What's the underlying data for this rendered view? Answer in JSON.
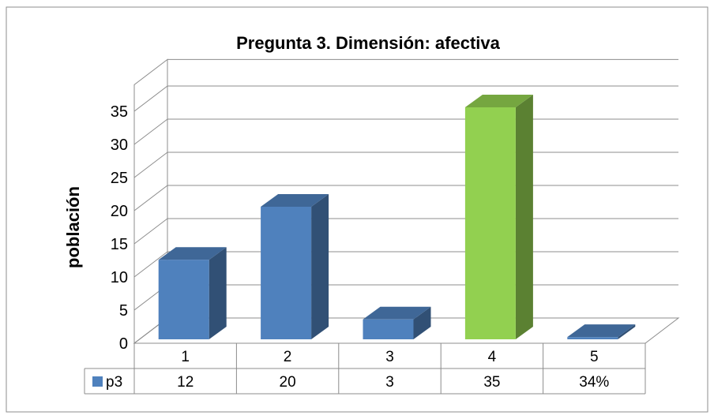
{
  "chart_data": {
    "type": "bar",
    "title": "Pregunta 3. Dimensión: afectiva",
    "xlabel": "",
    "ylabel": "población",
    "categories": [
      "1",
      "2",
      "3",
      "4",
      "5"
    ],
    "series": [
      {
        "name": "p3",
        "values": [
          12,
          20,
          3,
          35,
          0.34
        ],
        "labels": [
          "12",
          "20",
          "3",
          "35",
          "34%"
        ],
        "color": "#4f81bd",
        "highlight": {
          "index": 3,
          "color": "#92d050"
        }
      }
    ],
    "ylim": [
      0,
      35
    ],
    "yticks": [
      "0",
      "5",
      "10",
      "15",
      "20",
      "25",
      "30",
      "35"
    ],
    "grid": true,
    "style": "3d-column-with-data-table",
    "legend": "data-table"
  }
}
